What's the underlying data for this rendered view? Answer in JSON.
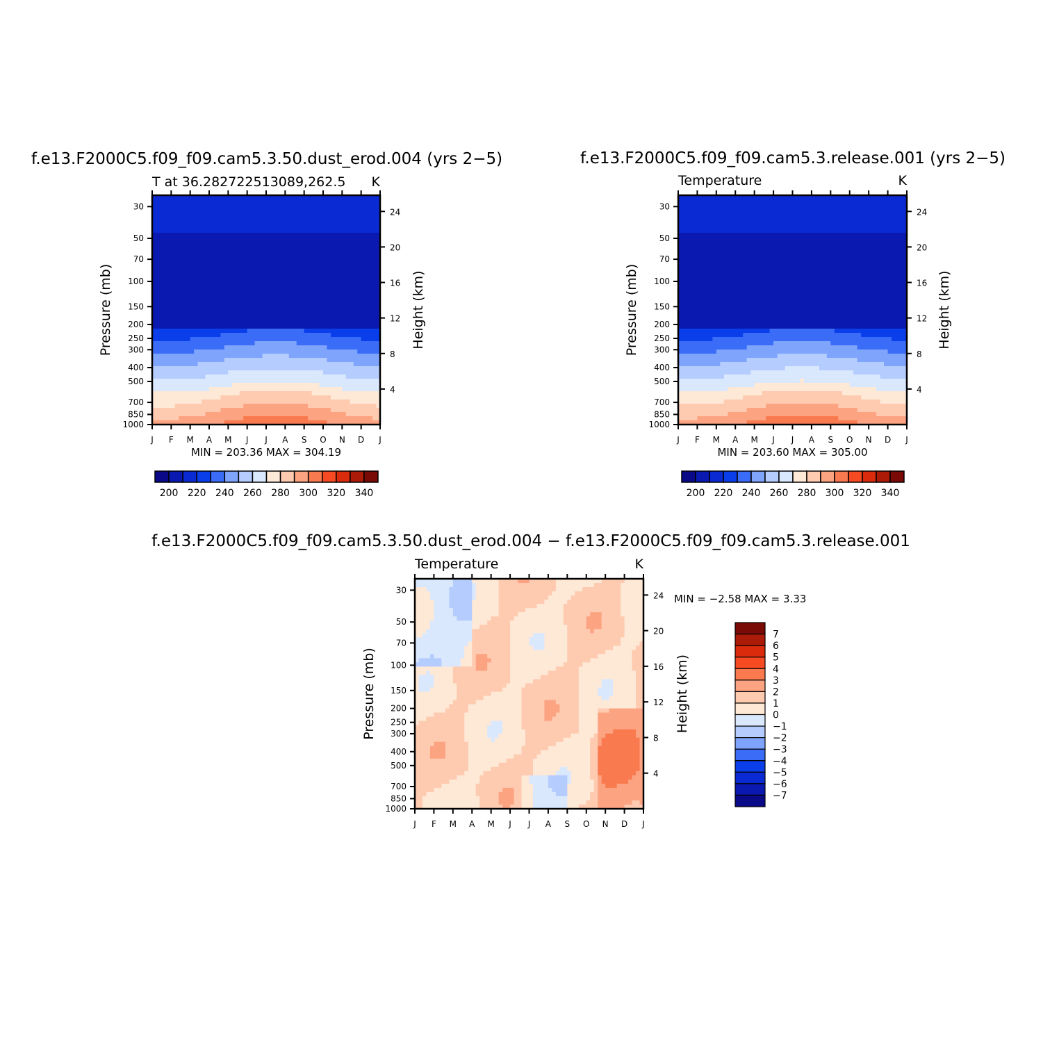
{
  "chart_data": [
    {
      "type": "heatmap",
      "title": "f.e13.F2000C5.f09_f09.cam5.3.50.dust_erod.004 (yrs 2−5)",
      "subtitle_left": "T at 36.282722513089,262.5",
      "subtitle_right": "K",
      "ylabel": "Pressure (mb)",
      "y2label": "Height (km)",
      "x_ticks": [
        "J",
        "F",
        "M",
        "A",
        "M",
        "J",
        "J",
        "A",
        "S",
        "O",
        "N",
        "D",
        "J"
      ],
      "y_ticks": [
        30,
        50,
        70,
        100,
        150,
        200,
        250,
        300,
        400,
        500,
        700,
        850,
        1000
      ],
      "y2_ticks": [
        24,
        20,
        16,
        12,
        8,
        4
      ],
      "ylim": [
        1000,
        25
      ],
      "yscale": "log",
      "minmax": "MIN = 203.36 MAX = 304.19",
      "colorbar": {
        "orientation": "horizontal",
        "levels": [
          200,
          220,
          240,
          260,
          280,
          300,
          320,
          340
        ]
      }
    },
    {
      "type": "heatmap",
      "title": "f.e13.F2000C5.f09_f09.cam5.3.release.001 (yrs 2−5)",
      "subtitle_left": "Temperature",
      "subtitle_right": "K",
      "ylabel": "Pressure (mb)",
      "y2label": "Height (km)",
      "x_ticks": [
        "J",
        "F",
        "M",
        "A",
        "M",
        "J",
        "J",
        "A",
        "S",
        "O",
        "N",
        "D",
        "J"
      ],
      "y_ticks": [
        30,
        50,
        70,
        100,
        150,
        200,
        250,
        300,
        400,
        500,
        700,
        850,
        1000
      ],
      "y2_ticks": [
        24,
        20,
        16,
        12,
        8,
        4
      ],
      "ylim": [
        1000,
        25
      ],
      "yscale": "log",
      "minmax": "MIN = 203.60 MAX = 305.00",
      "colorbar": {
        "orientation": "horizontal",
        "levels": [
          200,
          220,
          240,
          260,
          280,
          300,
          320,
          340
        ]
      }
    },
    {
      "type": "heatmap",
      "title": "f.e13.F2000C5.f09_f09.cam5.3.50.dust_erod.004 − f.e13.F2000C5.f09_f09.cam5.3.release.001",
      "subtitle_left": "Temperature",
      "subtitle_right": "K",
      "ylabel": "Pressure (mb)",
      "y2label": "Height (km)",
      "x_ticks": [
        "J",
        "F",
        "M",
        "A",
        "M",
        "J",
        "J",
        "A",
        "S",
        "O",
        "N",
        "D",
        "J"
      ],
      "y_ticks": [
        30,
        50,
        70,
        100,
        150,
        200,
        250,
        300,
        400,
        500,
        700,
        850,
        1000
      ],
      "y2_ticks": [
        24,
        20,
        16,
        12,
        8,
        4
      ],
      "ylim": [
        1000,
        25
      ],
      "yscale": "log",
      "minmax": "MIN =    −2.58 MAX =     3.33",
      "colorbar": {
        "orientation": "vertical",
        "levels": [
          "7",
          "6",
          "5",
          "4",
          "3",
          "2",
          "1",
          "0",
          "−1",
          "−2",
          "−3",
          "−4",
          "−5",
          "−6",
          "−7"
        ]
      }
    }
  ],
  "colors": {
    "abs_palette": [
      "#0a0a88",
      "#0a1ab0",
      "#0a2ad4",
      "#0a3eea",
      "#3a6cf8",
      "#7ea4fc",
      "#b4ccfe",
      "#dae8fe",
      "#fee8d6",
      "#fecab0",
      "#fca482",
      "#fa7a50",
      "#f64a22",
      "#da2c0c",
      "#ac1a08",
      "#7a0a06"
    ],
    "diff_palette": [
      "#7a0a06",
      "#ac1a08",
      "#da2c0c",
      "#f64a22",
      "#fa7a50",
      "#fca482",
      "#fecab0",
      "#fee8d6",
      "#dae8fe",
      "#b4ccfe",
      "#7ea4fc",
      "#3a6cf8",
      "#0a3eea",
      "#0a2ad4",
      "#0a1ab0",
      "#0a0a88"
    ]
  }
}
